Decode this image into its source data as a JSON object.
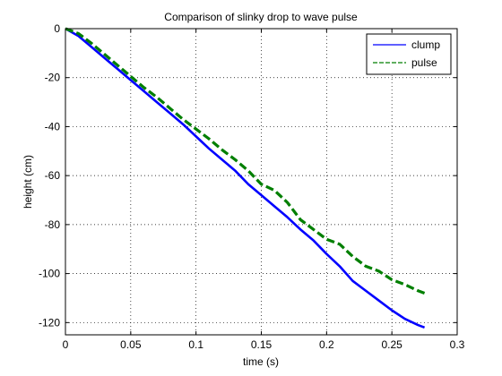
{
  "chart_data": {
    "type": "line",
    "title": "Comparison of slinky drop to wave pulse",
    "xlabel": "time (s)",
    "ylabel": "height (cm)",
    "xlim": [
      0,
      0.3
    ],
    "ylim": [
      -125,
      0
    ],
    "xticks": [
      0,
      0.05,
      0.1,
      0.15,
      0.2,
      0.25,
      0.3
    ],
    "xtick_labels": [
      "0",
      "0.05",
      "0.1",
      "0.15",
      "0.2",
      "0.25",
      "0.3"
    ],
    "yticks": [
      0,
      -20,
      -40,
      -60,
      -80,
      -100,
      -120
    ],
    "ytick_labels": [
      "0",
      "-20",
      "-40",
      "-60",
      "-80",
      "-100",
      "-120"
    ],
    "grid": true,
    "legend_position": "top-right",
    "series": [
      {
        "name": "clump",
        "color": "#0000ff",
        "style": "solid",
        "x": [
          0,
          0.01,
          0.02,
          0.03,
          0.04,
          0.05,
          0.06,
          0.07,
          0.08,
          0.09,
          0.1,
          0.11,
          0.12,
          0.13,
          0.14,
          0.15,
          0.16,
          0.17,
          0.18,
          0.19,
          0.2,
          0.21,
          0.22,
          0.23,
          0.24,
          0.25,
          0.26,
          0.27,
          0.275
        ],
        "y": [
          0,
          -3,
          -7.5,
          -12,
          -16.5,
          -21,
          -25.5,
          -30,
          -34.5,
          -39,
          -44,
          -49,
          -53.5,
          -58,
          -63.5,
          -68,
          -72.5,
          -77,
          -82,
          -86.5,
          -92,
          -97,
          -103,
          -107,
          -111,
          -115,
          -118.5,
          -121,
          -122
        ]
      },
      {
        "name": "pulse",
        "color": "#007f00",
        "style": "dashed",
        "x": [
          0,
          0.01,
          0.02,
          0.03,
          0.04,
          0.05,
          0.06,
          0.07,
          0.08,
          0.09,
          0.1,
          0.11,
          0.12,
          0.13,
          0.14,
          0.15,
          0.16,
          0.17,
          0.18,
          0.19,
          0.2,
          0.21,
          0.22,
          0.23,
          0.24,
          0.25,
          0.26,
          0.27,
          0.275
        ],
        "y": [
          0,
          -2,
          -6,
          -10.5,
          -15,
          -19.5,
          -24,
          -28,
          -32.5,
          -37,
          -41,
          -45,
          -49.5,
          -53.5,
          -58,
          -63.5,
          -66,
          -71,
          -78,
          -82,
          -86,
          -88,
          -93,
          -97,
          -99,
          -102.5,
          -104.5,
          -107,
          -108
        ]
      }
    ]
  }
}
